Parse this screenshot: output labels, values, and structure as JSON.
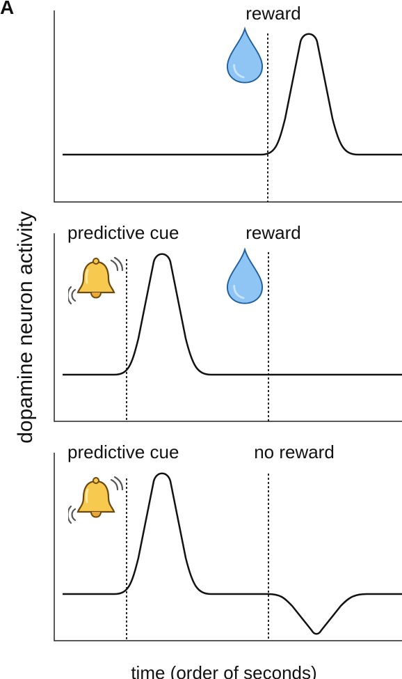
{
  "panel_label": "A",
  "y_axis_label": "dopamine neuron activity",
  "x_axis_label": "time (order of seconds)",
  "panels": [
    {
      "event_label": "reward"
    },
    {
      "cue_label": "predictive cue",
      "event_label": "reward"
    },
    {
      "cue_label": "predictive cue",
      "event_label": "no reward"
    }
  ]
}
